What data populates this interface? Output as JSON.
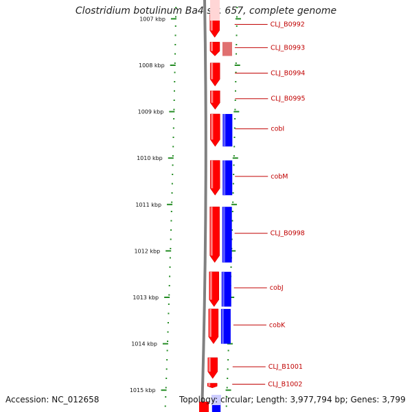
{
  "header": {
    "title": "Clostridium botulinum Ba4 str. 657, complete genome"
  },
  "footer": {
    "accession": "Accession: NC_012658",
    "topology": "Topology: circular; Length: 3,977,794 bp; Genes: 3,799"
  },
  "colors": {
    "forward_strand": "#ff0000",
    "reverse_strand": "#0000ff",
    "backbone": "#808080",
    "ticks": "#228b22",
    "labels": "#c00000"
  },
  "map": {
    "ruler": [
      {
        "label": "1007 kbp",
        "kbp": 1007
      },
      {
        "label": "1008 kbp",
        "kbp": 1008
      },
      {
        "label": "1009 kbp",
        "kbp": 1009
      },
      {
        "label": "1010 kbp",
        "kbp": 1010
      },
      {
        "label": "1011 kbp",
        "kbp": 1011
      },
      {
        "label": "1012 kbp",
        "kbp": 1012
      },
      {
        "label": "1013 kbp",
        "kbp": 1013
      },
      {
        "label": "1014 kbp",
        "kbp": 1014
      },
      {
        "label": "1015 kbp",
        "kbp": 1015
      }
    ],
    "genes": [
      {
        "name": "CLJ_B0992",
        "start_kbp": 1006.9,
        "end_kbp": 1007.4
      },
      {
        "name": "CLJ_B0993",
        "start_kbp": 1007.5,
        "end_kbp": 1007.8
      },
      {
        "name": "CLJ_B0994",
        "start_kbp": 1007.95,
        "end_kbp": 1008.45
      },
      {
        "name": "CLJ_B0995",
        "start_kbp": 1008.55,
        "end_kbp": 1008.95
      },
      {
        "name": "cobI",
        "start_kbp": 1009.05,
        "end_kbp": 1009.75
      },
      {
        "name": "cobM",
        "start_kbp": 1010.05,
        "end_kbp": 1010.8
      },
      {
        "name": "CLJ_B0998",
        "start_kbp": 1011.05,
        "end_kbp": 1012.25
      },
      {
        "name": "cobJ",
        "start_kbp": 1012.45,
        "end_kbp": 1013.2
      },
      {
        "name": "cobK",
        "start_kbp": 1013.25,
        "end_kbp": 1014.0
      },
      {
        "name": "CLJ_B1001",
        "start_kbp": 1014.3,
        "end_kbp": 1014.75
      },
      {
        "name": "CLJ_B1002",
        "start_kbp": 1014.85,
        "end_kbp": 1014.95
      }
    ]
  }
}
